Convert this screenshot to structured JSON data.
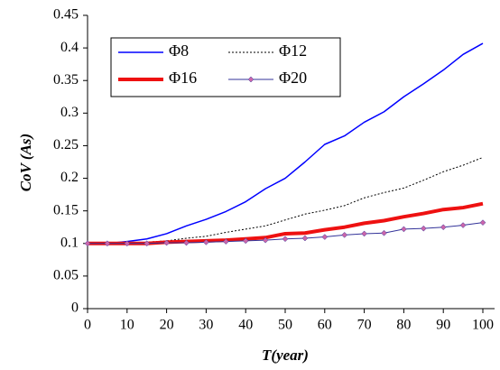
{
  "chart_data": {
    "type": "line",
    "x_label": "T(year)",
    "y_label": "CoV (As)",
    "x": [
      0,
      5,
      10,
      15,
      20,
      25,
      30,
      35,
      40,
      45,
      50,
      55,
      60,
      65,
      70,
      75,
      80,
      85,
      90,
      95,
      100
    ],
    "series": [
      {
        "name": "Φ8",
        "color": "#0000ff",
        "width": 1.5,
        "dash": "none",
        "marker": false,
        "values": [
          0.1,
          0.1,
          0.103,
          0.107,
          0.115,
          0.127,
          0.137,
          0.149,
          0.164,
          0.184,
          0.2,
          0.225,
          0.252,
          0.265,
          0.286,
          0.302,
          0.325,
          0.345,
          0.366,
          0.39,
          0.407
        ]
      },
      {
        "name": "Φ12",
        "color": "#000000",
        "width": 1,
        "dash": "2,2",
        "marker": false,
        "values": [
          0.1,
          0.1,
          0.101,
          0.102,
          0.104,
          0.108,
          0.111,
          0.117,
          0.122,
          0.127,
          0.136,
          0.145,
          0.151,
          0.158,
          0.17,
          0.178,
          0.185,
          0.197,
          0.21,
          0.22,
          0.232
        ]
      },
      {
        "name": "Φ16",
        "color": "#ee1111",
        "width": 4,
        "dash": "none",
        "marker": false,
        "values": [
          0.1,
          0.1,
          0.1,
          0.1,
          0.102,
          0.103,
          0.104,
          0.105,
          0.107,
          0.109,
          0.115,
          0.116,
          0.121,
          0.125,
          0.131,
          0.135,
          0.141,
          0.146,
          0.152,
          0.155,
          0.161
        ]
      },
      {
        "name": "Φ20",
        "color": "#333399",
        "width": 1,
        "dash": "none",
        "marker": true,
        "marker_color": "#cc66aa",
        "values": [
          0.1,
          0.1,
          0.1,
          0.1,
          0.101,
          0.101,
          0.102,
          0.103,
          0.104,
          0.105,
          0.107,
          0.108,
          0.11,
          0.113,
          0.115,
          0.116,
          0.122,
          0.123,
          0.125,
          0.128,
          0.132
        ]
      }
    ],
    "xlim": [
      0,
      100
    ],
    "xticks": [
      0,
      10,
      20,
      30,
      40,
      50,
      60,
      70,
      80,
      90,
      100
    ],
    "ylim": [
      0,
      0.45
    ],
    "yticks": [
      0,
      0.05,
      0.1,
      0.15,
      0.2,
      0.25,
      0.3,
      0.35,
      0.4,
      0.45
    ],
    "grid": false,
    "legend": "upper-left"
  }
}
